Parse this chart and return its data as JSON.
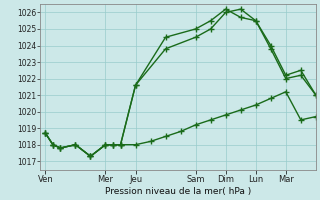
{
  "bg_color": "#cce8e8",
  "grid_color": "#99cccc",
  "line_color": "#1a6b1a",
  "title": "Pression niveau de la mer( hPa )",
  "ylim": [
    1016.5,
    1026.5
  ],
  "yticks": [
    1017,
    1018,
    1019,
    1020,
    1021,
    1022,
    1023,
    1024,
    1025,
    1026
  ],
  "day_labels": [
    "Ven",
    "Mer",
    "Jeu",
    "Sam",
    "Dim",
    "Lun",
    "Mar"
  ],
  "day_positions": [
    0,
    24,
    36,
    60,
    72,
    84,
    96
  ],
  "xlim": [
    -2,
    108
  ],
  "series1_x": [
    0,
    3,
    6,
    12,
    18,
    24,
    27,
    30,
    36,
    42,
    48,
    54,
    60,
    66,
    72,
    78,
    84,
    90,
    96,
    102,
    108
  ],
  "series1_y": [
    1018.7,
    1018.0,
    1017.8,
    1018.0,
    1017.3,
    1018.0,
    1018.0,
    1018.0,
    1018.0,
    1018.2,
    1018.5,
    1018.8,
    1019.2,
    1019.5,
    1019.8,
    1020.1,
    1020.4,
    1020.8,
    1021.2,
    1019.5,
    1019.7
  ],
  "series2_x": [
    0,
    3,
    6,
    12,
    18,
    24,
    27,
    30,
    36,
    48,
    60,
    66,
    72,
    78,
    84,
    90,
    96,
    102,
    108
  ],
  "series2_y": [
    1018.7,
    1018.0,
    1017.8,
    1018.0,
    1017.3,
    1018.0,
    1018.0,
    1018.0,
    1021.6,
    1024.5,
    1025.0,
    1025.5,
    1026.2,
    1025.7,
    1025.5,
    1023.8,
    1022.0,
    1022.2,
    1021.0
  ],
  "series3_x": [
    0,
    3,
    6,
    12,
    18,
    24,
    27,
    30,
    36,
    48,
    60,
    66,
    72,
    78,
    84,
    90,
    96,
    102,
    108
  ],
  "series3_y": [
    1018.7,
    1018.0,
    1017.8,
    1018.0,
    1017.3,
    1018.0,
    1018.0,
    1018.0,
    1021.6,
    1023.8,
    1024.5,
    1025.0,
    1026.0,
    1026.2,
    1025.5,
    1024.0,
    1022.2,
    1022.5,
    1021.0
  ]
}
